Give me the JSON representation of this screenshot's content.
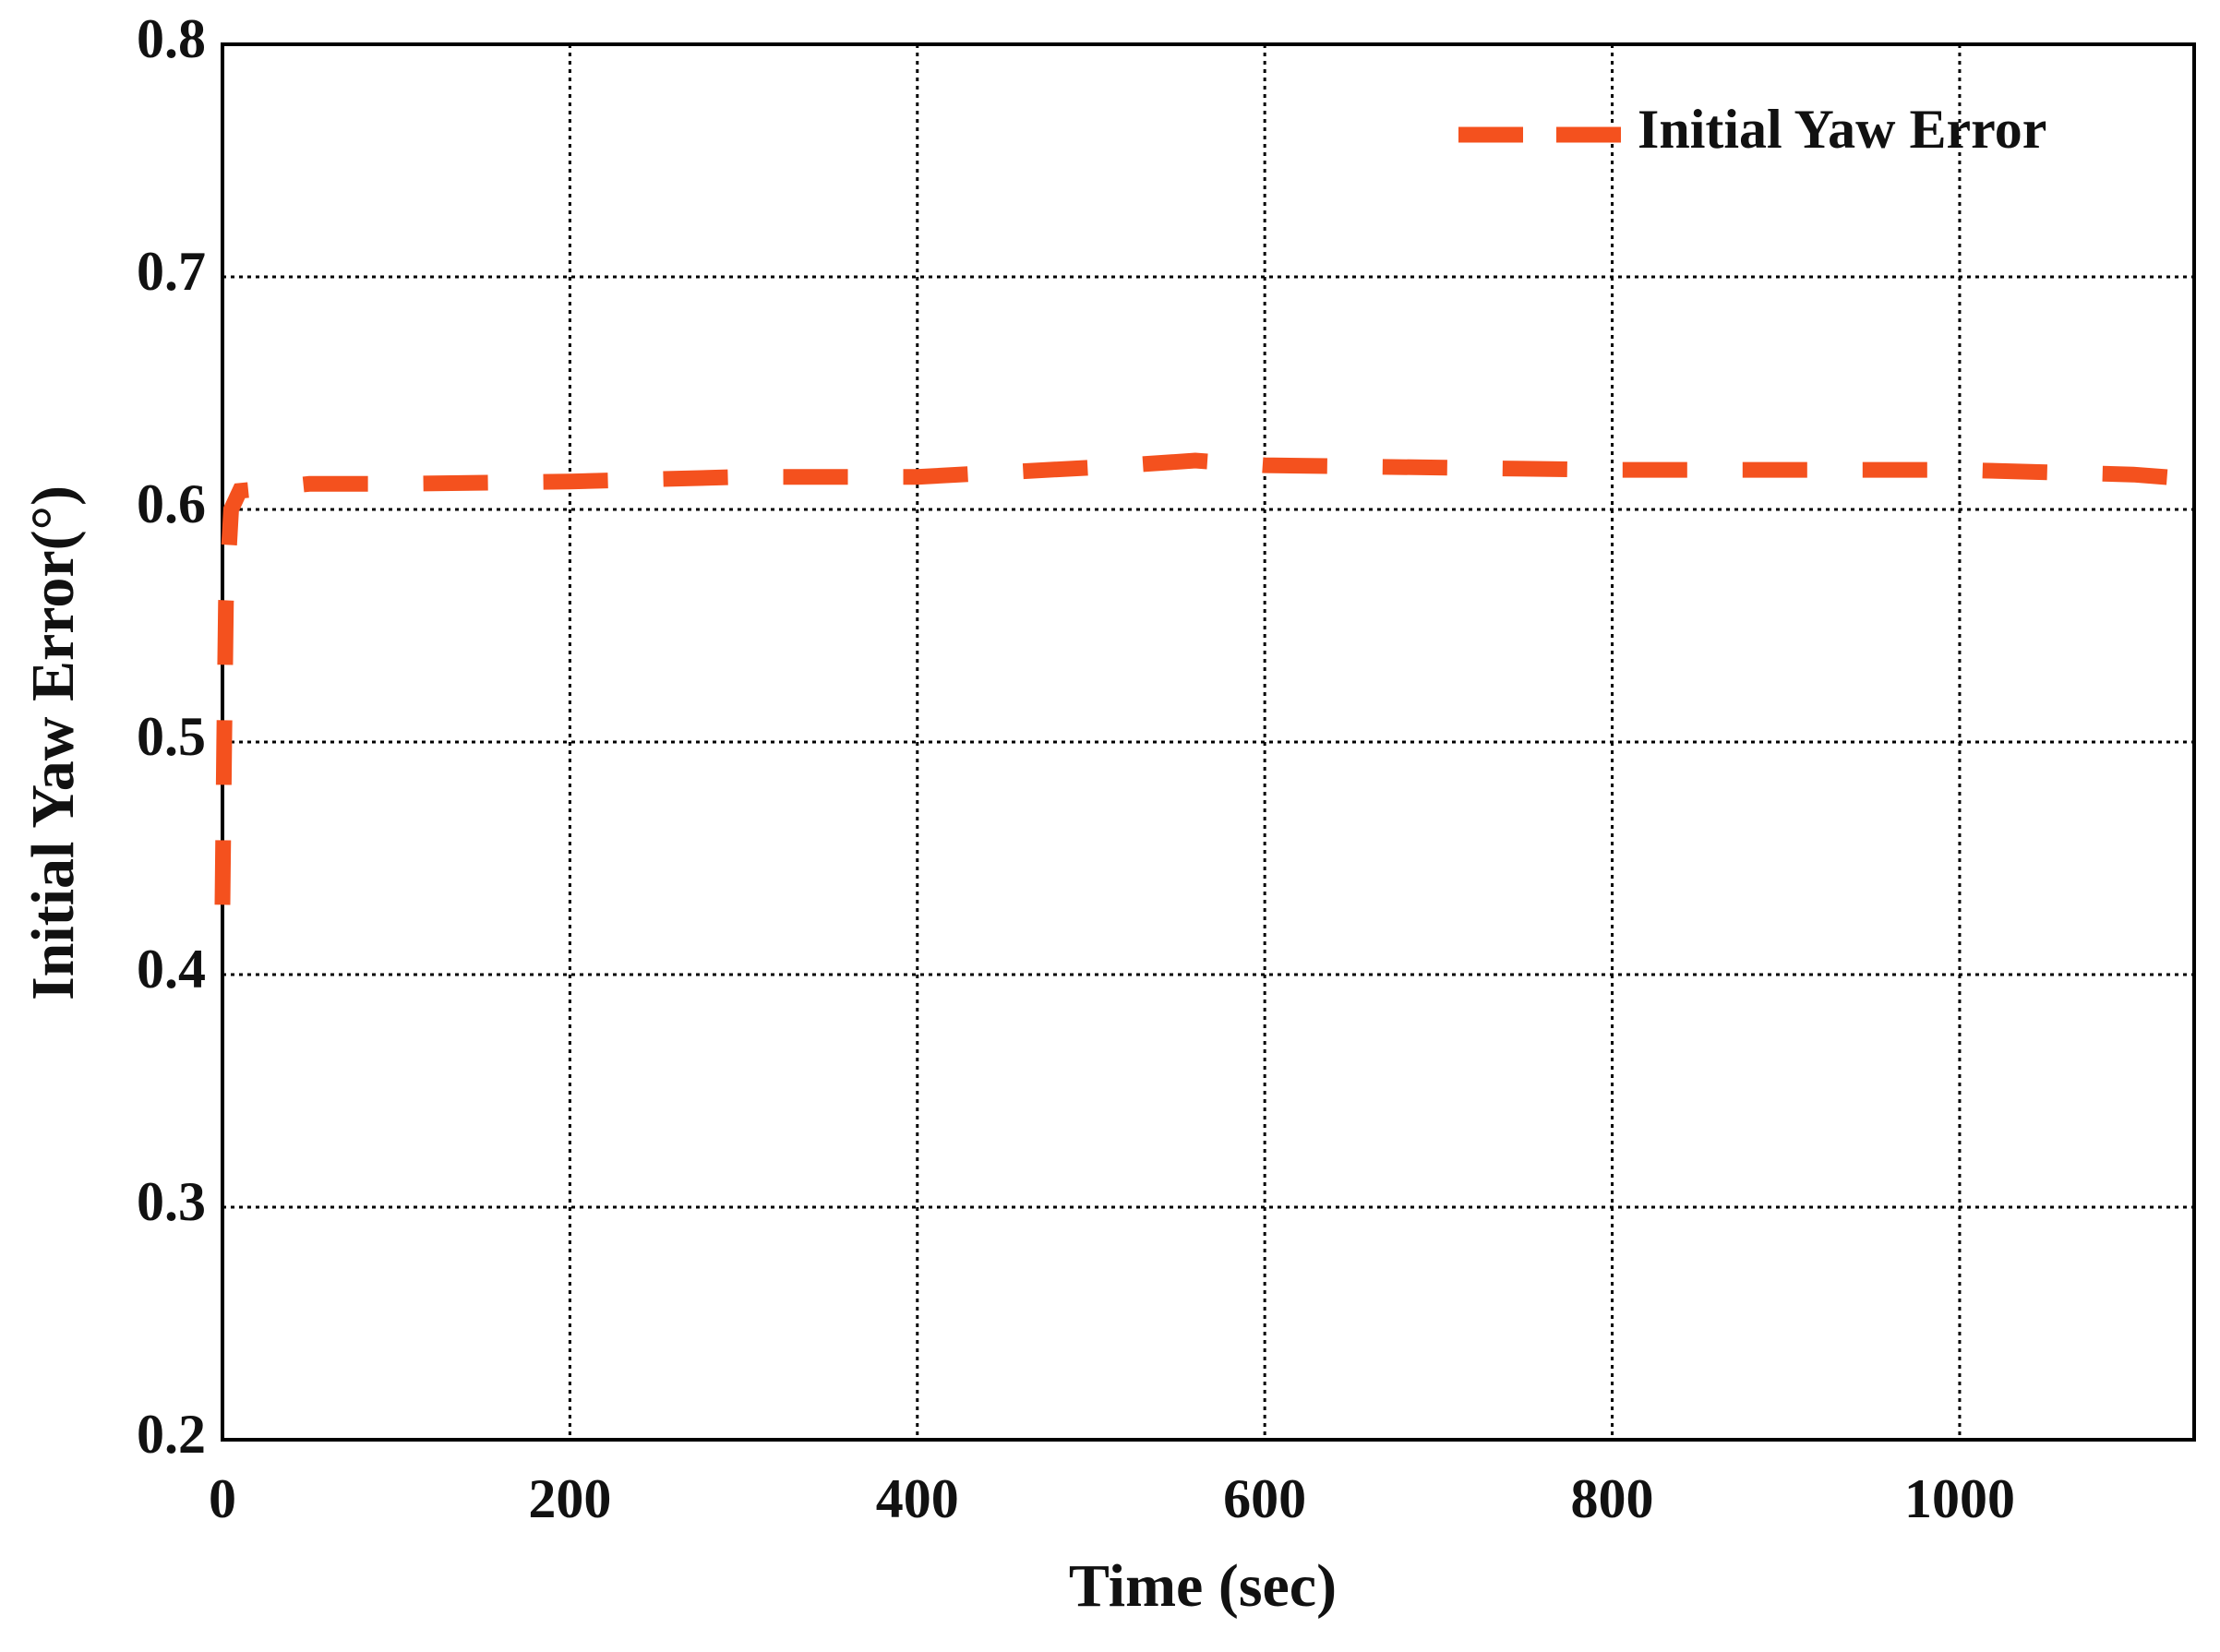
{
  "chart_data": {
    "type": "line",
    "xlabel": "Time (sec)",
    "ylabel": "Initial Yaw Error(°)",
    "x": [
      0,
      1,
      2,
      5,
      10,
      50,
      100,
      200,
      300,
      400,
      500,
      560,
      600,
      700,
      800,
      900,
      1000,
      1100,
      1135
    ],
    "series": [
      {
        "name": "Initial Yaw Error",
        "color": "#f4511e",
        "values": [
          0.43,
          0.5,
          0.56,
          0.6,
          0.608,
          0.611,
          0.611,
          0.612,
          0.614,
          0.614,
          0.618,
          0.621,
          0.619,
          0.618,
          0.617,
          0.617,
          0.617,
          0.615,
          0.613
        ]
      }
    ],
    "xlim": [
      0,
      1135
    ],
    "ylim": [
      0.2,
      0.8
    ],
    "xticks": [
      0,
      200,
      400,
      600,
      800,
      1000
    ],
    "yticks": [
      0.2,
      0.3,
      0.4,
      0.5,
      0.6,
      0.7,
      0.8
    ],
    "grid": true,
    "legend": "upper right"
  }
}
